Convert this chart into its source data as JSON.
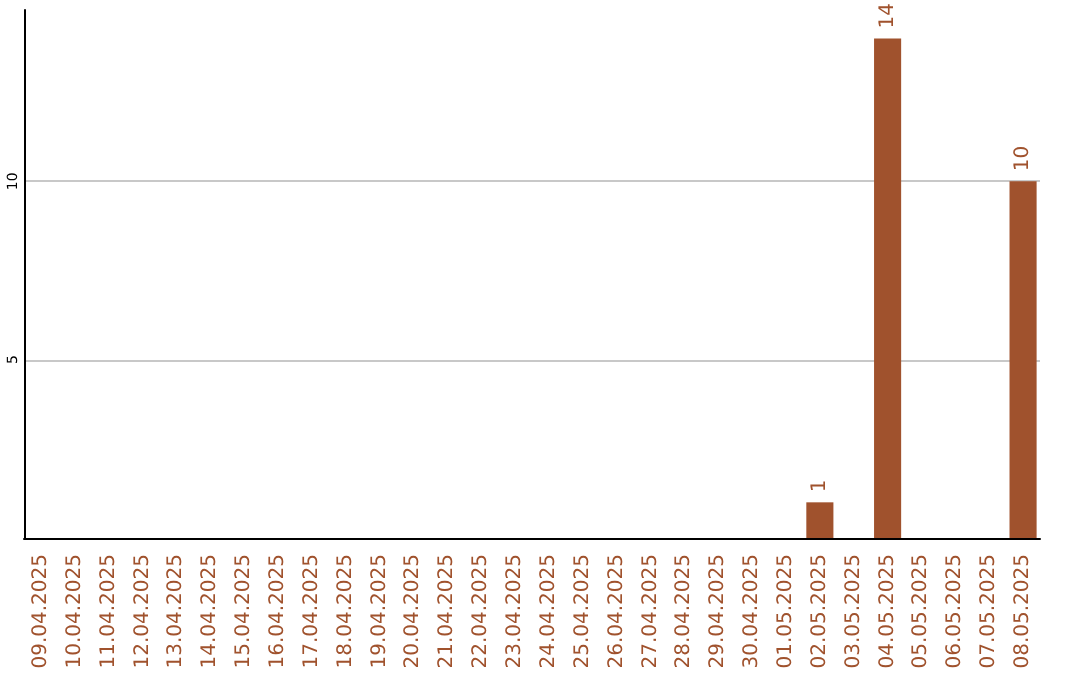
{
  "chart_data": {
    "type": "bar",
    "categories": [
      "09.04.2025",
      "10.04.2025",
      "11.04.2025",
      "12.04.2025",
      "13.04.2025",
      "14.04.2025",
      "15.04.2025",
      "16.04.2025",
      "17.04.2025",
      "18.04.2025",
      "19.04.2025",
      "20.04.2025",
      "21.04.2025",
      "22.04.2025",
      "23.04.2025",
      "24.04.2025",
      "25.04.2025",
      "26.04.2025",
      "27.04.2025",
      "28.04.2025",
      "29.04.2025",
      "30.04.2025",
      "01.05.2025",
      "02.05.2025",
      "03.05.2025",
      "04.05.2025",
      "05.05.2025",
      "06.05.2025",
      "07.05.2025",
      "08.05.2025"
    ],
    "values": [
      0,
      0,
      0,
      0,
      0,
      0,
      0,
      0,
      0,
      0,
      0,
      0,
      0,
      0,
      0,
      0,
      0,
      0,
      0,
      0,
      0,
      0,
      0,
      1,
      0,
      14,
      0,
      0,
      0,
      10
    ],
    "value_labels": [
      null,
      null,
      null,
      null,
      null,
      null,
      null,
      null,
      null,
      null,
      null,
      null,
      null,
      null,
      null,
      null,
      null,
      null,
      null,
      null,
      null,
      null,
      null,
      "1",
      null,
      "14",
      null,
      null,
      null,
      "10"
    ],
    "color": "#a0522d",
    "ylim": [
      0,
      14.8
    ],
    "yticks": [
      5,
      10
    ],
    "grid": "y"
  }
}
